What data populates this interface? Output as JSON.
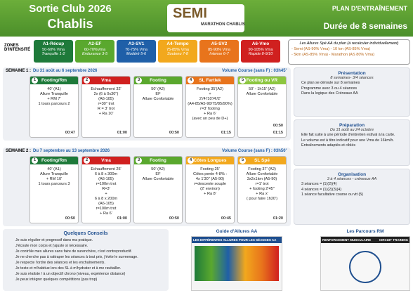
{
  "header": {
    "title": "Sortie Club 2026",
    "subtitle": "Chablis",
    "logo": "SEMI",
    "logo_sub": "MARATHON CHABLIS",
    "plan": "PLAN D'ENTRAÎNEMENT",
    "duration": "Durée de 8 semaines"
  },
  "zones": {
    "label": "ZONES D'INTENSITÉ",
    "items": [
      {
        "name": "A1-Récup",
        "pct": "50-60% Vma",
        "feel": "Tranquille 1-2",
        "color": "#1e7a3a"
      },
      {
        "name": "A2-EF",
        "pct": "60-70%Vma",
        "feel": "Endurance 3-5",
        "color": "#5aa82e"
      },
      {
        "name": "A3-SV1",
        "pct": "70-75% Vma",
        "feel": "Modéré 5-6",
        "color": "#1f5fa8"
      },
      {
        "name": "A4-Tempo",
        "pct": "75-85% Vma",
        "feel": "Soutenu 7-8",
        "color": "#f2a81d"
      },
      {
        "name": "A5-SV2",
        "pct": "85-90% Vma",
        "feel": "Intense 6-7",
        "color": "#e8741c"
      },
      {
        "name": "A6-Vmo",
        "pct": "90-105% Vma",
        "feel": "Rapide 8-9/10",
        "color": "#d0201f"
      }
    ]
  },
  "allures": {
    "title": "Les Allures Spé AA du plan (à recalculer individuellement)",
    "lines": [
      "- Semi (AS-90% Vma) - 10 km (AS-85% Vma)",
      "- 5km (AS-85% Vma) - Marathon (AS 80% Vma)"
    ]
  },
  "weeks": [
    {
      "label": "SEMAINE 1 :",
      "dates": "Du 31 août au 6 septembre 2026",
      "volume": "Volume Course (sans F) : 03h45'",
      "days": [
        {
          "num": "1",
          "title": "Footing/Rm",
          "color": "#1e7a3a",
          "lines": [
            "40' (A1)",
            "Allure Tranquille",
            "+ RM 7'",
            "1 tours parcours 2"
          ],
          "times": [
            "00:47"
          ]
        },
        {
          "num": "2",
          "title": "Vma",
          "color": "#d0201f",
          "lines": [
            "Echauffement 32'",
            "2x (6 à 0x30'')",
            "(A6-105)",
            "r=30'' trot",
            "R = 3' trot",
            "+ Ra 10'"
          ],
          "times": [
            "01:00"
          ]
        },
        {
          "num": "3",
          "title": "Footing",
          "color": "#5aa82e",
          "lines": [
            "50' (A2)",
            "EF",
            "Allure Confortable"
          ],
          "times": [
            "00:50"
          ]
        },
        {
          "num": "4",
          "title": "SL Fartlek",
          "color": "#e8741c",
          "lines": [
            "Footing 35'(A2)",
            "+",
            "2'/4'/10'/4'/2'",
            "(A4-85/A5-90/75/85/90%)",
            "r=3' footing",
            "+ Ra 6'",
            "(avec un peu de D+)"
          ],
          "times": [
            "01:15"
          ]
        },
        {
          "num": "5",
          "title": "Footing ou VR",
          "color": "#8cc63f",
          "lines": [
            "50' - 1h15' (A2)",
            "Allure Confortable"
          ],
          "times": [
            "00:50",
            "01:15"
          ]
        }
      ]
    },
    {
      "label": "SEMAINE 2 :",
      "dates": "Du 7 septembre au 13 septembre 2026",
      "volume": "Volume Course (sans F) : 03h50'",
      "days": [
        {
          "num": "1",
          "title": "Footing/Rm",
          "color": "#1e7a3a",
          "lines": [
            "40' (A1)",
            "Allure Tranquille",
            "+ RM 10'",
            "1 tours parcours 3"
          ],
          "times": [
            "00:50"
          ]
        },
        {
          "num": "2",
          "title": "Vma",
          "color": "#d0201f",
          "lines": [
            "Echauffement 25'",
            "6 à 8 x 300m",
            "(A6-105)",
            "r=100m trot",
            "R=3'",
            "+",
            "6 à 8 x 200m",
            "(A6-105)",
            "r=100m trot",
            "+ Ra 6'"
          ],
          "times": [
            "01:00"
          ]
        },
        {
          "num": "3",
          "title": "Footing",
          "color": "#5aa82e",
          "lines": [
            "50' (A2)",
            "EF",
            "Allure Confortable"
          ],
          "times": [
            "00:50"
          ]
        },
        {
          "num": "4",
          "title": "Côtes Longues",
          "color": "#f2a81d",
          "lines": [
            "Footing 25'",
            "Côtes pente 4-8% :",
            "4x 1'30'' (A5-90)",
            "r=descente souple",
            "(2' environ)",
            "+ Ra 8'"
          ],
          "times": [
            "00:45"
          ]
        },
        {
          "num": "5",
          "title": "SL Spé",
          "color": "#f2a81d",
          "lines": [
            "Footing 37' (A2)",
            "Allure Confortable",
            "3x2x1km (A5-90)",
            "r=1' trot",
            "+ footing 2'45''",
            "+ Ra x'",
            "( pour faire 1h20')"
          ],
          "times": [
            "01:20"
          ]
        }
      ]
    }
  ],
  "panels": [
    {
      "title": "Présentation",
      "sub": "8 semaines- 3/4 séances",
      "items": [
        "Ce plan se déroule sur 8 semaines",
        "Programme avec 3 ou 4 séances",
        "Dans la logique des Créneaux AA"
      ]
    },
    {
      "title": "Préparation",
      "sub": "Du 31 août au 24 octobre",
      "items": [
        "Elle fait suite à une période d'entretien estival à la carte.",
        "Le volume est à titre indicatif pour une Vma de 16km/h.",
        "Entraînements adaptés et ciblés"
      ]
    },
    {
      "title": "Organisation",
      "sub": "3 à 4 séances - créneaux AA",
      "items": [
        "3 séances = (1)(2)(4)",
        "4 séances = (1)(2)(3)(4)",
        "1 séance facultative course ou vtt (5)"
      ]
    }
  ],
  "conseils": {
    "title": "Quelques Conseils",
    "items": [
      "Je suis régulier et progressif dans ma pratique.",
      "J'écoute mon corps et j'ajuste si nécessaire.",
      "Je contrôle mes allures sans faire de surenchère, c'est contreproductif.",
      "Je ne cherche pas à rattraper les séances à tout prix, j'évite le surmenage.",
      "Je respecte l'ordre des séances et les enchaînements.",
      "Je teste et m'habitue lors des SL à m'hydrater et à me ravitailler.",
      "Je suis réaliste / à un objectif chrono (niveau, expérience distance)",
      "Je peux intégrer quelques compétitions (pas trop)"
    ]
  },
  "guide": {
    "title": "Guide d'Allures AA",
    "banner": "LES DIFFÉRENTES ALLURES POUR LES SÉANCES AA"
  },
  "parcours": {
    "title": "Les Parcours RM",
    "banner": "RENFORCEMENT MUSCULAIRE",
    "circuit": "CIRCUIT TRAINING"
  }
}
